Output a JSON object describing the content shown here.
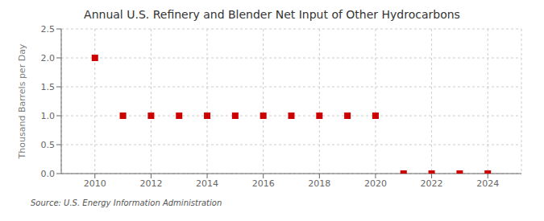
{
  "chart_data": {
    "type": "scatter",
    "title": "Annual U.S. Refinery and Blender Net Input of Other Hydrocarbons",
    "y_label": "Thousand Barrels per Day",
    "annotations": [
      "Source: U.S. Energy Information Administration"
    ],
    "x": [
      2010,
      2011,
      2012,
      2013,
      2014,
      2015,
      2016,
      2017,
      2018,
      2019,
      2020,
      2021,
      2022,
      2023,
      2024
    ],
    "values": [
      2.0,
      1.0,
      1.0,
      1.0,
      1.0,
      1.0,
      1.0,
      1.0,
      1.0,
      1.0,
      1.0,
      0.0,
      0.0,
      0.0,
      0.0
    ],
    "color": "#cc0000",
    "marker": "square",
    "xlim": [
      2008.8,
      2025.2
    ],
    "ylim": [
      0,
      2.5
    ],
    "xticks": [
      2010,
      2012,
      2014,
      2016,
      2018,
      2020,
      2022,
      2024
    ],
    "yticks": [
      {
        "value": 0,
        "label": "0.0"
      },
      0.5,
      {
        "value": 1,
        "label": "1.0"
      },
      1.5,
      {
        "value": 2,
        "label": "2.0"
      },
      2.5
    ],
    "grid": true
  }
}
